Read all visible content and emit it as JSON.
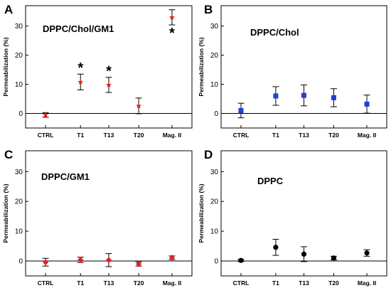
{
  "chart_data": [
    {
      "panel_label": "A",
      "type": "scatter",
      "title": "DPPC/Chol/GM1",
      "ylabel": "Permeabilization (%)",
      "xlabel": "",
      "ylim": [
        -5,
        37
      ],
      "yticks": [
        0,
        10,
        20,
        30
      ],
      "categories": [
        "CTRL",
        "T1",
        "T13",
        "T20",
        "Mag. II"
      ],
      "marker": "star",
      "marker_color": "#e8201c",
      "values": [
        -0.5,
        10.8,
        9.8,
        2.6,
        33.0
      ],
      "errors": [
        0.8,
        2.7,
        2.6,
        2.7,
        2.6
      ],
      "significance": [
        "",
        "*",
        "*",
        "",
        "*"
      ]
    },
    {
      "panel_label": "B",
      "type": "scatter",
      "title": "DPPC/Chol",
      "ylabel": "Permeabilization (%)",
      "xlabel": "",
      "ylim": [
        -5,
        37
      ],
      "yticks": [
        0,
        10,
        20,
        30
      ],
      "categories": [
        "CTRL",
        "T1",
        "T13",
        "T20",
        "Mag. II"
      ],
      "marker": "square",
      "marker_color": "#1f3fd6",
      "values": [
        1.0,
        6.0,
        6.2,
        5.4,
        3.2
      ],
      "errors": [
        2.5,
        3.2,
        3.6,
        3.1,
        3.1
      ],
      "significance": [
        "",
        "",
        "",
        "",
        ""
      ]
    },
    {
      "panel_label": "C",
      "type": "scatter",
      "title": "DPPC/GM1",
      "ylabel": "Permeabilization (%)",
      "xlabel": "",
      "ylim": [
        -5,
        37
      ],
      "yticks": [
        0,
        10,
        20,
        30
      ],
      "categories": [
        "CTRL",
        "T1",
        "T13",
        "T20",
        "Mag. II"
      ],
      "marker": "diamond",
      "marker_color": "#e8201c",
      "values": [
        -0.4,
        0.4,
        0.3,
        -1.0,
        1.1
      ],
      "errors": [
        1.3,
        0.9,
        2.2,
        0.7,
        0.6
      ],
      "significance": [
        "",
        "",
        "",
        "",
        ""
      ]
    },
    {
      "panel_label": "D",
      "type": "scatter",
      "title": "DPPC",
      "ylabel": "Permeabilization (%)",
      "xlabel": "",
      "ylim": [
        -5,
        37
      ],
      "yticks": [
        0,
        10,
        20,
        30
      ],
      "categories": [
        "CTRL",
        "T1",
        "T13",
        "T20",
        "Mag. II"
      ],
      "marker": "circle",
      "marker_color": "#000000",
      "values": [
        0.2,
        4.6,
        2.3,
        1.0,
        2.7
      ],
      "errors": [
        0.4,
        2.7,
        2.5,
        0.6,
        1.1
      ],
      "significance": [
        "",
        "",
        "",
        "",
        ""
      ]
    }
  ]
}
